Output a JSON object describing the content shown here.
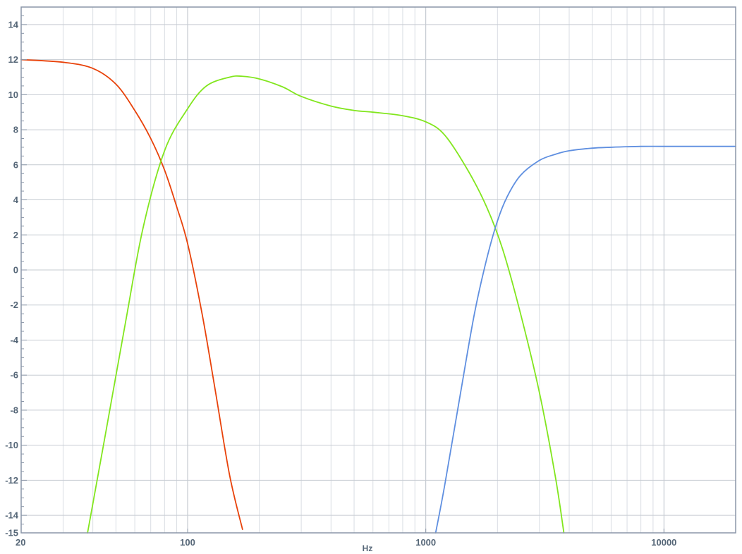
{
  "chart_data": {
    "type": "line",
    "title": "",
    "xlabel": "Hz",
    "ylabel": "",
    "x_scale": "log",
    "xlim": [
      20,
      20000
    ],
    "ylim": [
      -15,
      15
    ],
    "grid": true,
    "x_ticks": [
      {
        "value": 20,
        "label": "20"
      },
      {
        "value": 100,
        "label": "100"
      },
      {
        "value": 1000,
        "label": "1000"
      },
      {
        "value": 10000,
        "label": "10000"
      }
    ],
    "y_ticks": [
      {
        "value": 14,
        "label": "14"
      },
      {
        "value": 12,
        "label": "12"
      },
      {
        "value": 10,
        "label": "10"
      },
      {
        "value": 8,
        "label": "8"
      },
      {
        "value": 6,
        "label": "6"
      },
      {
        "value": 4,
        "label": "4"
      },
      {
        "value": 2,
        "label": "2"
      },
      {
        "value": 0,
        "label": "0"
      },
      {
        "value": -2,
        "label": "-2"
      },
      {
        "value": -4,
        "label": "-4"
      },
      {
        "value": -6,
        "label": "-6"
      },
      {
        "value": -8,
        "label": "-8"
      },
      {
        "value": -10,
        "label": "-10"
      },
      {
        "value": -12,
        "label": "-12"
      },
      {
        "value": -14,
        "label": "-14"
      },
      {
        "value": -15,
        "label": "-15"
      }
    ],
    "series": [
      {
        "color": "#e8420a",
        "x": [
          20,
          30,
          40,
          50,
          60,
          70,
          80,
          90,
          100,
          115,
          130,
          150,
          170
        ],
        "y": [
          12.0,
          11.85,
          11.5,
          10.6,
          9.1,
          7.5,
          5.7,
          3.6,
          1.5,
          -2.5,
          -6.7,
          -11.7,
          -14.8
        ]
      },
      {
        "color": "#82e61e",
        "x": [
          38,
          45,
          55,
          65,
          80,
          100,
          120,
          150,
          170,
          200,
          250,
          300,
          400,
          500,
          600,
          800,
          1000,
          1200,
          1500,
          1800,
          2100,
          2500,
          3000,
          3500,
          3800
        ],
        "y": [
          -15,
          -9.5,
          -2.9,
          2.4,
          6.8,
          9.2,
          10.5,
          11.0,
          11.05,
          10.9,
          10.45,
          9.9,
          9.35,
          9.1,
          9.0,
          8.8,
          8.45,
          7.7,
          5.7,
          3.6,
          1.2,
          -2.5,
          -7.0,
          -11.8,
          -15.0
        ]
      },
      {
        "color": "#5f8fe0",
        "x": [
          1100,
          1200,
          1400,
          1600,
          1800,
          2000,
          2200,
          2500,
          3000,
          3500,
          4000,
          5000,
          6000,
          8000,
          10000,
          14000,
          20000
        ],
        "y": [
          -15.0,
          -12.3,
          -7.0,
          -2.5,
          0.6,
          2.8,
          4.2,
          5.4,
          6.25,
          6.6,
          6.8,
          6.95,
          7.0,
          7.05,
          7.05,
          7.05,
          7.05
        ]
      }
    ]
  }
}
